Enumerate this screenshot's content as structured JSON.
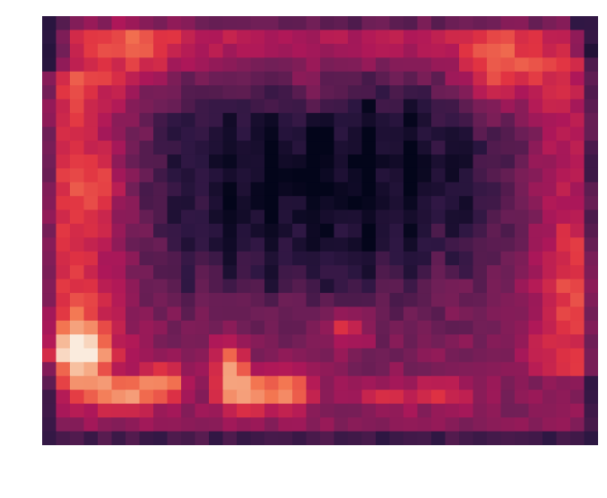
{
  "chart_data": {
    "type": "heatmap",
    "title": "",
    "xlabel": "",
    "ylabel": "",
    "axes_visible": false,
    "grid": false,
    "colormap": "rocket",
    "colors": [
      "#03051a",
      "#2e1743",
      "#701f57",
      "#ad1759",
      "#e13342",
      "#f37651",
      "#f6b48f",
      "#faebdd"
    ],
    "value_range": [
      0,
      1
    ],
    "cols": 40,
    "rows": 31,
    "layers": {
      "base": 0.34,
      "frame": [
        {
          "edge": "left",
          "start": 0.12,
          "end": 0.82,
          "width": 0.06,
          "amp": 0.26
        },
        {
          "edge": "right",
          "start": 0.1,
          "end": 0.85,
          "width": 0.05,
          "amp": 0.2
        },
        {
          "edge": "top",
          "start": 0.05,
          "end": 0.95,
          "width": 0.05,
          "amp": 0.18
        }
      ],
      "dark_cells": [
        {
          "x": 0.58,
          "y": 0.36,
          "sx": 0.28,
          "sy": 0.2,
          "amp": -0.22
        },
        {
          "x": 0.4,
          "y": 0.42,
          "sx": 0.18,
          "sy": 0.2,
          "amp": -0.1
        }
      ],
      "stripes": [
        {
          "x": 0.25,
          "y0": 0.23,
          "y1": 0.66,
          "amp": -0.1
        },
        {
          "x": 0.33,
          "y0": 0.23,
          "y1": 0.66,
          "amp": -0.1
        },
        {
          "x": 0.41,
          "y0": 0.23,
          "y1": 0.66,
          "amp": -0.1
        },
        {
          "x": 0.5,
          "y0": 0.23,
          "y1": 0.66,
          "amp": -0.1
        },
        {
          "x": 0.58,
          "y0": 0.2,
          "y1": 0.66,
          "amp": -0.12
        },
        {
          "x": 0.67,
          "y0": 0.2,
          "y1": 0.66,
          "amp": -0.12
        },
        {
          "x": 0.75,
          "y0": 0.23,
          "y1": 0.6,
          "amp": -0.1
        }
      ],
      "hotspots": [
        {
          "x": 0.07,
          "y": 0.8,
          "sx": 0.035,
          "sy": 0.055,
          "amp": 0.62
        },
        {
          "x": 0.14,
          "y": 0.88,
          "sx": 0.04,
          "sy": 0.03,
          "amp": 0.46
        },
        {
          "x": 0.22,
          "y": 0.86,
          "sx": 0.03,
          "sy": 0.03,
          "amp": 0.4
        },
        {
          "x": 0.34,
          "y": 0.83,
          "sx": 0.022,
          "sy": 0.055,
          "amp": 0.44
        },
        {
          "x": 0.38,
          "y": 0.88,
          "sx": 0.035,
          "sy": 0.03,
          "amp": 0.4
        },
        {
          "x": 0.45,
          "y": 0.87,
          "sx": 0.03,
          "sy": 0.03,
          "amp": 0.42
        },
        {
          "x": 0.55,
          "y": 0.73,
          "sx": 0.025,
          "sy": 0.03,
          "amp": 0.28
        },
        {
          "x": 0.64,
          "y": 0.88,
          "sx": 0.06,
          "sy": 0.022,
          "amp": 0.2
        },
        {
          "x": 0.74,
          "y": 0.88,
          "sx": 0.03,
          "sy": 0.022,
          "amp": 0.16
        },
        {
          "x": 0.16,
          "y": 0.08,
          "sx": 0.05,
          "sy": 0.06,
          "amp": 0.2
        },
        {
          "x": 0.1,
          "y": 0.4,
          "sx": 0.03,
          "sy": 0.05,
          "amp": 0.16
        },
        {
          "x": 0.82,
          "y": 0.13,
          "sx": 0.05,
          "sy": 0.06,
          "amp": 0.3
        },
        {
          "x": 0.96,
          "y": 0.62,
          "sx": 0.03,
          "sy": 0.1,
          "amp": 0.12
        },
        {
          "x": 0.48,
          "y": 0.18,
          "sx": 0.04,
          "sy": 0.05,
          "amp": 0.1
        }
      ],
      "border_dark": {
        "width": 0.035,
        "amp": -0.28
      },
      "noise": 0.05,
      "seed": 7
    }
  }
}
